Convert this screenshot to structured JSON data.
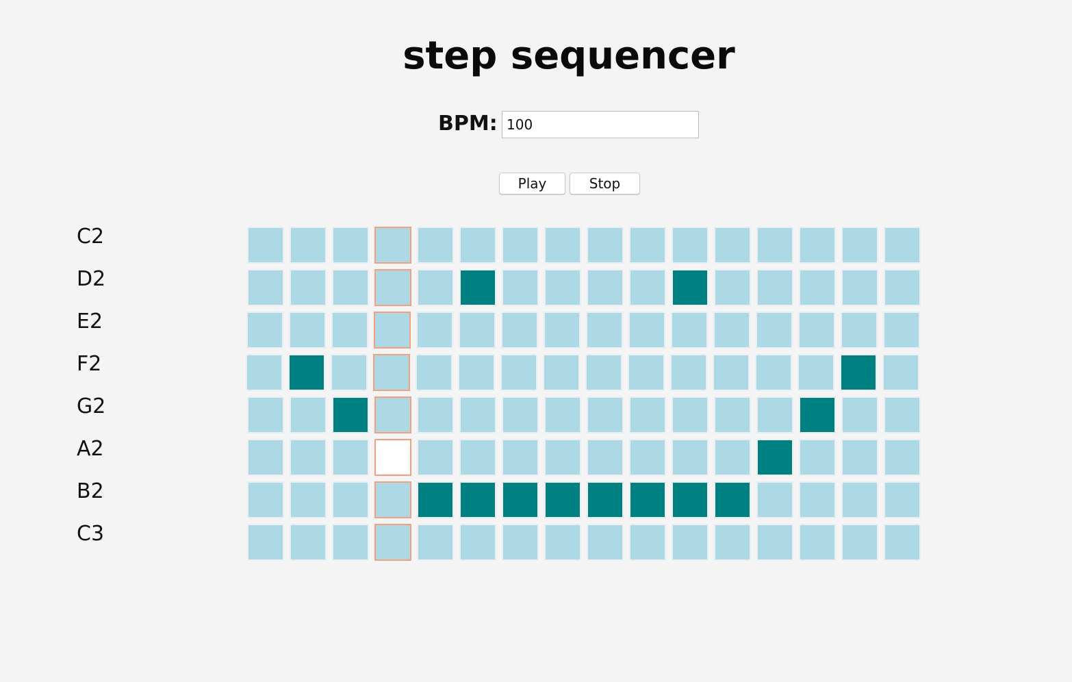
{
  "page": {
    "title": "step sequencer"
  },
  "controls": {
    "bpm_label": "BPM:",
    "bpm_value": "100",
    "play_label": "Play",
    "stop_label": "Stop"
  },
  "sequencer": {
    "notes": [
      "C2",
      "D2",
      "E2",
      "F2",
      "G2",
      "A2",
      "B2",
      "C3"
    ],
    "steps_per_row": 16,
    "current_step": 3,
    "playing_cell": {
      "row": 5,
      "step": 3
    },
    "rows": [
      [
        0,
        0,
        0,
        0,
        0,
        0,
        0,
        0,
        0,
        0,
        0,
        0,
        0,
        0,
        0,
        0
      ],
      [
        0,
        0,
        0,
        0,
        0,
        1,
        0,
        0,
        0,
        0,
        1,
        0,
        0,
        0,
        0,
        0
      ],
      [
        0,
        0,
        0,
        0,
        0,
        0,
        0,
        0,
        0,
        0,
        0,
        0,
        0,
        0,
        0,
        0
      ],
      [
        0,
        1,
        0,
        0,
        0,
        0,
        0,
        0,
        0,
        0,
        0,
        0,
        0,
        0,
        1,
        0
      ],
      [
        0,
        0,
        1,
        0,
        0,
        0,
        0,
        0,
        0,
        0,
        0,
        0,
        0,
        1,
        0,
        0
      ],
      [
        0,
        0,
        0,
        0,
        0,
        0,
        0,
        0,
        0,
        0,
        0,
        0,
        1,
        0,
        0,
        0
      ],
      [
        0,
        0,
        0,
        0,
        1,
        1,
        1,
        1,
        1,
        1,
        1,
        1,
        0,
        0,
        0,
        0
      ],
      [
        0,
        0,
        0,
        0,
        0,
        0,
        0,
        0,
        0,
        0,
        0,
        0,
        0,
        0,
        0,
        0
      ]
    ]
  },
  "colors": {
    "background": "#f4f4f4",
    "step_off": "#add8e6",
    "step_on": "#008080",
    "step_border": "#e9eef0",
    "current_step_border": "#f4a07f",
    "playing_cell": "#ffffff"
  }
}
